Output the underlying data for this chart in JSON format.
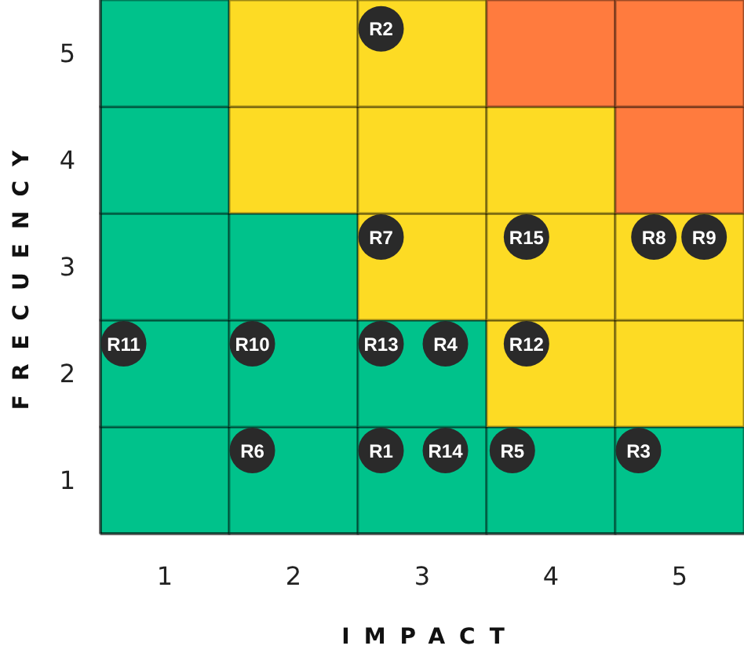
{
  "chart_data": {
    "type": "bar",
    "stacked": true,
    "xlabel": "IMPACT",
    "ylabel": "FRECUENCY",
    "x": [
      1,
      2,
      3,
      4,
      5
    ],
    "xlim": [
      0.5,
      5.5
    ],
    "ylim": [
      0.5,
      5.5
    ],
    "xticks": [
      1,
      2,
      3,
      4,
      5
    ],
    "yticks": [
      1,
      2,
      3,
      4,
      5
    ],
    "series": [
      {
        "values": [
          1.5,
          1.5,
          1.5,
          1.5,
          1.5
        ],
        "colors": [
          "#00c28b",
          "#00c28b",
          "#00c28b",
          "#00c28b",
          "#00c28b"
        ]
      },
      {
        "values": [
          1,
          1,
          1,
          1,
          1
        ],
        "colors": [
          "#00c28b",
          "#00c28b",
          "#00c28b",
          "#fddb24",
          "#fddb24"
        ]
      },
      {
        "values": [
          1,
          1,
          1,
          1,
          1
        ],
        "colors": [
          "#00c28b",
          "#00c28b",
          "#fddb24",
          "#fddb24",
          "#fddb24"
        ]
      },
      {
        "values": [
          1,
          1,
          1,
          1,
          1
        ],
        "colors": [
          "#00c28b",
          "#fddb24",
          "#fddb24",
          "#fddb24",
          "#ff7b3e"
        ]
      },
      {
        "values": [
          1,
          1,
          1,
          1,
          1
        ],
        "colors": [
          "#00c28b",
          "#fddb24",
          "#fddb24",
          "#ff7b3e",
          "#ff7b3e"
        ]
      },
      {
        "type": "scatter",
        "color": "#2a2a2a",
        "x": [
          2.68,
          2.68,
          3.81,
          4.8,
          5.19,
          0.68,
          1.68,
          2.68,
          3.18,
          3.81,
          1.68,
          2.68,
          3.18,
          3.7,
          4.68
        ],
        "values": [
          5.23,
          3.28,
          3.28,
          3.28,
          3.28,
          2.28,
          2.28,
          2.28,
          2.28,
          2.28,
          1.28,
          1.28,
          1.28,
          1.28,
          1.28
        ],
        "value_labels": [
          "R2",
          "R7",
          "R15",
          "R8",
          "R9",
          "R11",
          "R10",
          "R13",
          "R4",
          "R12",
          "R6",
          "R1",
          "R14",
          "R5",
          "R3"
        ]
      }
    ]
  }
}
